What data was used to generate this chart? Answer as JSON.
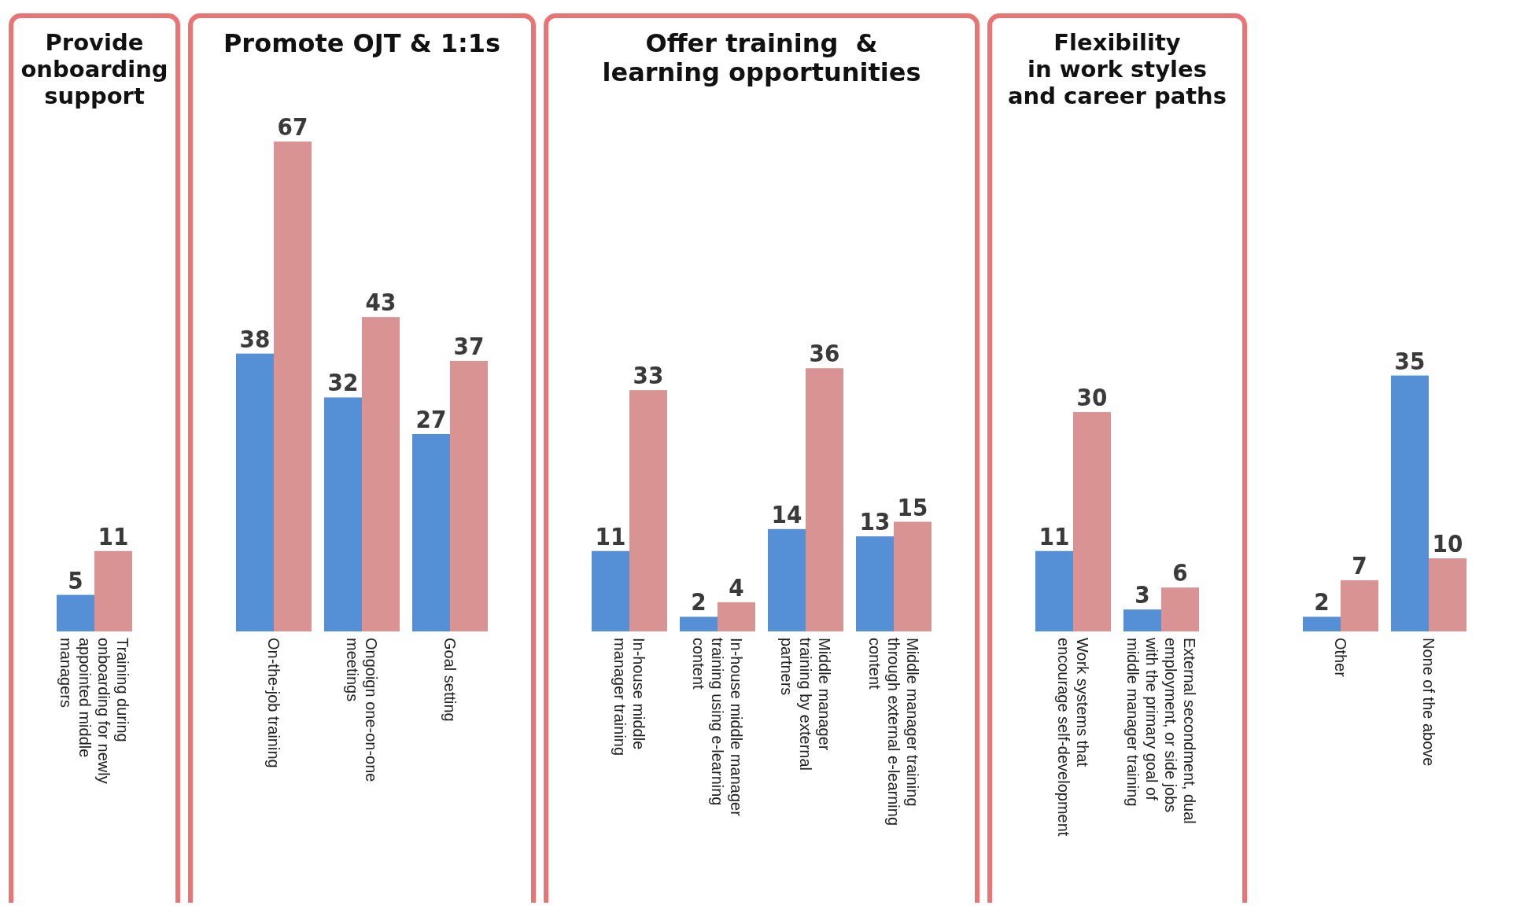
{
  "chart_data": [
    {
      "type": "bar",
      "title": "Provide\nonboarding\nsupport",
      "categories": [
        "Training during\nonboarding for newly\nappointed middle\nmanagers"
      ],
      "data_labels": true,
      "series": [
        {
          "color": "#558fd6",
          "values": [
            5
          ]
        },
        {
          "color": "#d99392",
          "values": [
            11
          ]
        }
      ]
    },
    {
      "type": "bar",
      "title": "Promote OJT & 1:1s",
      "categories": [
        "On-the-job training",
        "Ongoign one-on-one\nmeetings",
        "Goal setting"
      ],
      "data_labels": true,
      "series": [
        {
          "color": "#558fd6",
          "values": [
            38,
            32,
            27
          ]
        },
        {
          "color": "#d99392",
          "values": [
            67,
            43,
            37
          ]
        }
      ]
    },
    {
      "type": "bar",
      "title": "Offer training  &\nlearning opportunities",
      "categories": [
        "In-house middle\nmanager training",
        "In-house middle manager\ntraining using e-learning\ncontent",
        "Middle manager\ntraining by external\npartners",
        "Middle manager training\nthrough external e-learning\ncontent"
      ],
      "data_labels": true,
      "series": [
        {
          "color": "#558fd6",
          "values": [
            11,
            2,
            14,
            13
          ]
        },
        {
          "color": "#d99392",
          "values": [
            33,
            4,
            36,
            15
          ]
        }
      ]
    },
    {
      "type": "bar",
      "title": "Flexibility\nin work styles\nand career paths",
      "categories": [
        "Work systems that\nencourage self-development",
        "External secondment, dual\nemployment, or side jobs\nwith the primary goal of\nmiddle manager training"
      ],
      "data_labels": true,
      "series": [
        {
          "color": "#558fd6",
          "values": [
            11,
            3
          ]
        },
        {
          "color": "#d99392",
          "values": [
            30,
            6
          ]
        }
      ]
    },
    {
      "type": "bar",
      "categories": [
        "Other",
        "None of the above"
      ],
      "data_labels": true,
      "series": [
        {
          "color": "#558fd6",
          "values": [
            2,
            35
          ]
        },
        {
          "color": "#d99392",
          "values": [
            7,
            10
          ]
        }
      ]
    }
  ]
}
